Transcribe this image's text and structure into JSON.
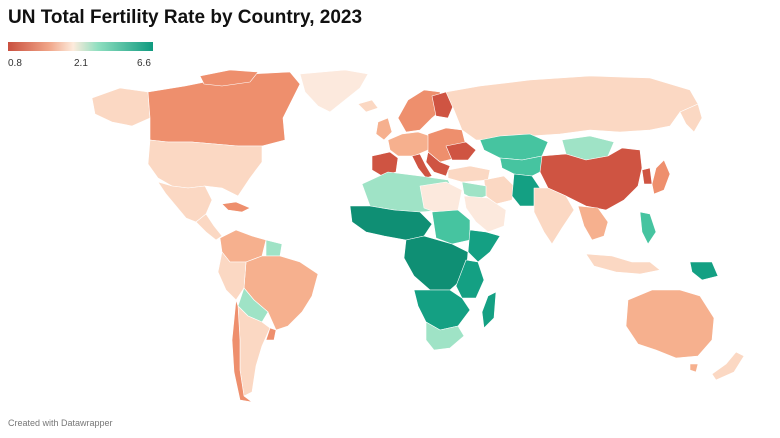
{
  "title": "UN Total Fertility Rate by Country, 2023",
  "legend": {
    "ticks": [
      "0.8",
      "2.1",
      "6.6"
    ],
    "colors": {
      "low": "#c9503f",
      "mid": "#fdebdc",
      "high": "#0f9a7f"
    }
  },
  "footer": {
    "credit": "Created with Datawrapper"
  },
  "palette": {
    "very_low": "#cf5442",
    "low": "#ee8f6d",
    "below": "#f6b08e",
    "near": "#fbd8c3",
    "replacement": "#fce9dd",
    "above": "#9fe3c6",
    "high": "#46c4a0",
    "very_high": "#14a083",
    "highest": "#0f8f74"
  }
}
